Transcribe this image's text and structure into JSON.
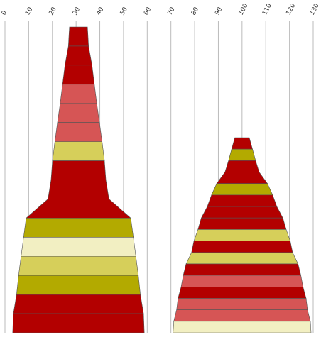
{
  "chart_data": {
    "type": "bar",
    "subtype": "stacked-funnel",
    "title": "",
    "xlabel": "",
    "ylabel": "",
    "xlim": [
      0,
      130
    ],
    "x_ticks": [
      "0",
      "10",
      "20",
      "30",
      "40",
      "50",
      "60",
      "70",
      "80",
      "90",
      "100",
      "110",
      "120",
      "130"
    ],
    "grid": true,
    "legend": "none",
    "colors": {
      "dark_red": "#b30000",
      "light_red": "#d65555",
      "olive": "#b3aa00",
      "khaki": "#d6cf5a",
      "cream": "#f2efc2",
      "edge": "#555555",
      "grid": "#bbbbbb"
    },
    "series": [
      {
        "center": 31,
        "segments": [
          {
            "width": 7.6,
            "color": "dark_red"
          },
          {
            "width": 8.5,
            "color": "dark_red"
          },
          {
            "width": 11.4,
            "color": "dark_red"
          },
          {
            "width": 13.4,
            "color": "light_red"
          },
          {
            "width": 15.4,
            "color": "light_red"
          },
          {
            "width": 17.7,
            "color": "light_red"
          },
          {
            "width": 19.9,
            "color": "khaki"
          },
          {
            "width": 21.9,
            "color": "dark_red"
          },
          {
            "width": 23.1,
            "color": "dark_red"
          },
          {
            "width": 25.7,
            "color": "dark_red"
          },
          {
            "width": 44.1,
            "color": "olive"
          },
          {
            "width": 46.3,
            "color": "cream"
          },
          {
            "width": 48.4,
            "color": "khaki"
          },
          {
            "width": 50.5,
            "color": "olive"
          },
          {
            "width": 52.2,
            "color": "dark_red"
          },
          {
            "width": 54.9,
            "color": "dark_red"
          }
        ]
      },
      {
        "center": 100,
        "segments": [
          {
            "width": 6.1,
            "color": "dark_red"
          },
          {
            "width": 8.8,
            "color": "olive"
          },
          {
            "width": 11.4,
            "color": "dark_red"
          },
          {
            "width": 14.4,
            "color": "dark_red"
          },
          {
            "width": 21.4,
            "color": "olive"
          },
          {
            "width": 25.8,
            "color": "dark_red"
          },
          {
            "width": 29.3,
            "color": "dark_red"
          },
          {
            "width": 34.4,
            "color": "dark_red"
          },
          {
            "width": 37.2,
            "color": "khaki"
          },
          {
            "width": 40.6,
            "color": "dark_red"
          },
          {
            "width": 42.6,
            "color": "khaki"
          },
          {
            "width": 47.2,
            "color": "dark_red"
          },
          {
            "width": 49.6,
            "color": "light_red"
          },
          {
            "width": 51.4,
            "color": "dark_red"
          },
          {
            "width": 54.0,
            "color": "light_red"
          },
          {
            "width": 55.2,
            "color": "light_red"
          },
          {
            "width": 57.6,
            "color": "cream"
          }
        ]
      }
    ]
  }
}
